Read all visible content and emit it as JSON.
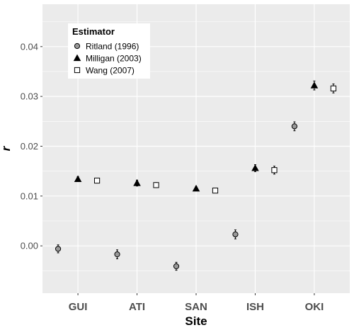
{
  "chart_data": {
    "type": "scatter",
    "xlabel": "Site",
    "ylabel": "r",
    "categories": [
      "GUI",
      "ATI",
      "SAN",
      "ISH",
      "OKI"
    ],
    "ylim": [
      -0.0095,
      0.0485
    ],
    "yticks": [
      0.0,
      0.01,
      0.02,
      0.03,
      0.04
    ],
    "ytick_labels": [
      "0.00",
      "0.01",
      "0.02",
      "0.03",
      "0.04"
    ],
    "grid": true,
    "legend": {
      "title": "Estimator",
      "position": "top-left"
    },
    "series": [
      {
        "name": "Ritland (1996)",
        "marker": "circle",
        "fill": "#999999",
        "values": [
          -0.0006,
          -0.0017,
          -0.0041,
          0.0023,
          0.024
        ],
        "error": [
          0.0008,
          0.0009,
          0.0008,
          0.0009,
          0.0009
        ]
      },
      {
        "name": "Milligan (2003)",
        "marker": "triangle",
        "fill": "#000000",
        "values": [
          0.0134,
          0.0126,
          0.0115,
          0.0156,
          0.0322
        ],
        "error": [
          0.0005,
          0.0006,
          0.0004,
          0.0007,
          0.0009
        ]
      },
      {
        "name": "Wang (2007)",
        "marker": "square",
        "fill": "#ffffff",
        "values": [
          0.0131,
          0.0122,
          0.0111,
          0.0152,
          0.0316
        ],
        "error": [
          0.0005,
          0.0005,
          0.0004,
          0.0008,
          0.0009
        ]
      }
    ]
  }
}
